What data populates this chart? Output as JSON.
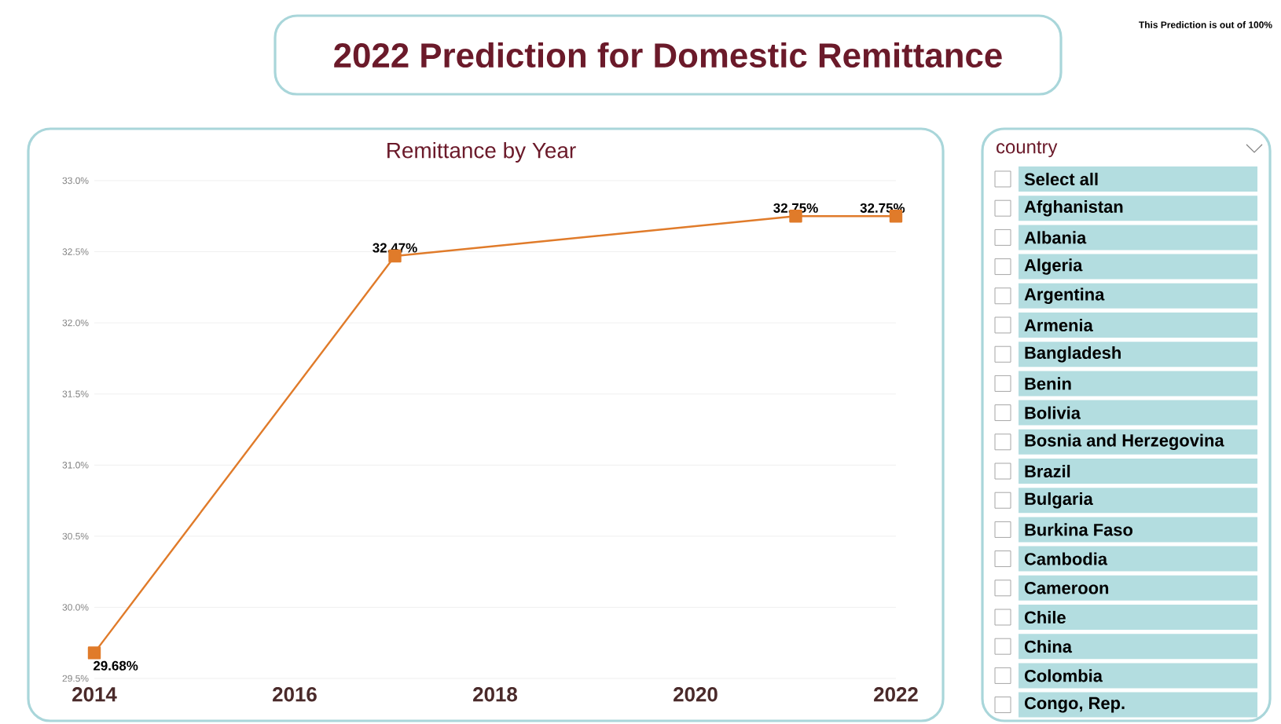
{
  "chart_data": [
    {
      "type": "line",
      "title": "2022 Prediction for Domestic Remittance",
      "subtitle": "Remittance by Year",
      "annotations": [
        "This Prediction is out of 100%"
      ],
      "xlim": [
        2014,
        2022
      ],
      "xticks": [
        2014,
        2016,
        2018,
        2020,
        2022
      ],
      "ylim": [
        29.5,
        33.0
      ],
      "yticks": [
        {
          "value": 29.5,
          "label": "29.5%"
        },
        {
          "value": 30.0,
          "label": "30.0%"
        },
        {
          "value": 30.5,
          "label": "30.5%"
        },
        {
          "value": 31.0,
          "label": "31.0%"
        },
        {
          "value": 31.5,
          "label": "31.5%"
        },
        {
          "value": 32.0,
          "label": "32.0%"
        },
        {
          "value": 32.5,
          "label": "32.5%"
        },
        {
          "value": 33.0,
          "label": "33.0%"
        }
      ],
      "grid": "y",
      "marker": "square",
      "series": [
        {
          "color": "#e07b2a",
          "x": [
            2014,
            2017,
            2021,
            2022
          ],
          "values": [
            29.68,
            32.47,
            32.75,
            32.75
          ],
          "value_labels": [
            "29.68%",
            "32.47%",
            "32.75%",
            "32.75%"
          ]
        }
      ]
    },
    {
      "type": "other",
      "title": "country",
      "annotations": [
        "Select all",
        "Afghanistan",
        "Albania",
        "Algeria",
        "Argentina",
        "Armenia",
        "Bangladesh",
        "Benin",
        "Bolivia",
        "Bosnia and Herzegovina",
        "Brazil",
        "Bulgaria",
        "Burkina Faso",
        "Cambodia",
        "Cameroon",
        "Chile",
        "China",
        "Colombia",
        "Congo, Rep."
      ]
    }
  ]
}
